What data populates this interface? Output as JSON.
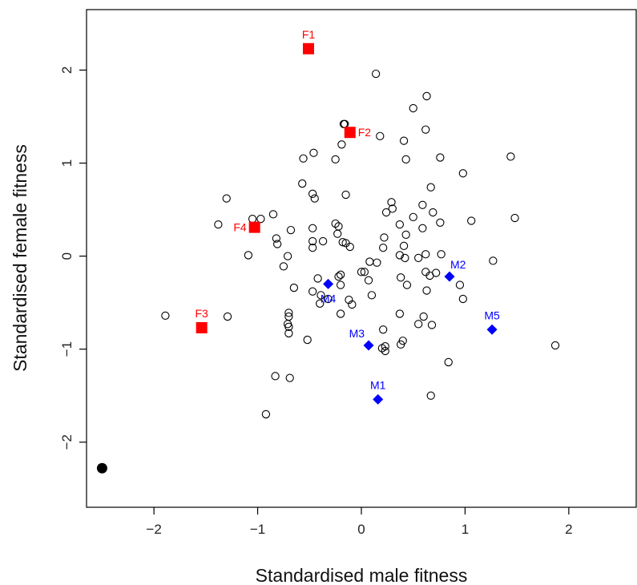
{
  "chart_data": {
    "type": "scatter",
    "xlabel": "Standardised male fitness",
    "ylabel": "Standardised female fitness",
    "xlim": [
      -2.65,
      2.65
    ],
    "ylim": [
      -2.7,
      2.65
    ],
    "xticks": [
      -2,
      -1,
      0,
      1,
      2
    ],
    "yticks": [
      -2,
      -1,
      0,
      1,
      2
    ],
    "grid": false,
    "colors": {
      "female": "#ff0000",
      "male": "#0000ff",
      "points": "#000000"
    },
    "series": [
      {
        "marker": "open-circle",
        "points": [
          [
            0.14,
            1.96
          ],
          [
            0.63,
            1.72
          ],
          [
            0.5,
            1.59
          ],
          [
            -0.17,
            1.42
          ],
          [
            -0.16,
            1.42
          ],
          [
            0.62,
            1.36
          ],
          [
            0.18,
            1.29
          ],
          [
            0.41,
            1.24
          ],
          [
            -0.19,
            1.2
          ],
          [
            -0.46,
            1.11
          ],
          [
            -0.56,
            1.05
          ],
          [
            -0.25,
            1.04
          ],
          [
            0.43,
            1.04
          ],
          [
            0.76,
            1.06
          ],
          [
            1.44,
            1.07
          ],
          [
            0.98,
            0.89
          ],
          [
            -0.57,
            0.78
          ],
          [
            0.67,
            0.74
          ],
          [
            -0.47,
            0.67
          ],
          [
            -0.15,
            0.66
          ],
          [
            -0.45,
            0.62
          ],
          [
            -1.3,
            0.62
          ],
          [
            0.29,
            0.58
          ],
          [
            0.59,
            0.55
          ],
          [
            0.3,
            0.51
          ],
          [
            0.24,
            0.47
          ],
          [
            0.69,
            0.47
          ],
          [
            -0.85,
            0.45
          ],
          [
            0.5,
            0.42
          ],
          [
            -1.05,
            0.4
          ],
          [
            -0.97,
            0.4
          ],
          [
            1.06,
            0.38
          ],
          [
            0.76,
            0.36
          ],
          [
            1.48,
            0.41
          ],
          [
            -0.25,
            0.35
          ],
          [
            -1.38,
            0.34
          ],
          [
            0.37,
            0.34
          ],
          [
            -0.22,
            0.32
          ],
          [
            0.59,
            0.3
          ],
          [
            -0.47,
            0.3
          ],
          [
            -0.68,
            0.28
          ],
          [
            -0.23,
            0.24
          ],
          [
            0.43,
            0.23
          ],
          [
            0.22,
            0.2
          ],
          [
            -0.82,
            0.19
          ],
          [
            -0.47,
            0.16
          ],
          [
            -0.37,
            0.16
          ],
          [
            -0.18,
            0.15
          ],
          [
            -0.15,
            0.14
          ],
          [
            -0.81,
            0.13
          ],
          [
            0.41,
            0.11
          ],
          [
            -0.11,
            0.1
          ],
          [
            -0.47,
            0.09
          ],
          [
            0.21,
            0.09
          ],
          [
            -1.09,
            0.01
          ],
          [
            -0.71,
            0.0
          ],
          [
            0.37,
            0.01
          ],
          [
            0.62,
            0.02
          ],
          [
            0.77,
            0.02
          ],
          [
            0.42,
            -0.02
          ],
          [
            0.55,
            -0.02
          ],
          [
            1.27,
            -0.05
          ],
          [
            0.08,
            -0.06
          ],
          [
            0.15,
            -0.07
          ],
          [
            -0.75,
            -0.11
          ],
          [
            0.62,
            -0.17
          ],
          [
            0.0,
            -0.17
          ],
          [
            0.03,
            -0.17
          ],
          [
            0.72,
            -0.18
          ],
          [
            -0.2,
            -0.2
          ],
          [
            -0.22,
            -0.22
          ],
          [
            0.66,
            -0.21
          ],
          [
            0.38,
            -0.23
          ],
          [
            -0.42,
            -0.24
          ],
          [
            0.07,
            -0.26
          ],
          [
            0.95,
            -0.31
          ],
          [
            0.44,
            -0.31
          ],
          [
            -0.2,
            -0.31
          ],
          [
            -0.65,
            -0.34
          ],
          [
            0.63,
            -0.37
          ],
          [
            -0.47,
            -0.38
          ],
          [
            0.1,
            -0.42
          ],
          [
            -0.39,
            -0.42
          ],
          [
            -0.32,
            -0.46
          ],
          [
            0.98,
            -0.46
          ],
          [
            -0.12,
            -0.47
          ],
          [
            -0.09,
            -0.52
          ],
          [
            -0.4,
            -0.51
          ],
          [
            -0.7,
            -0.61
          ],
          [
            -0.7,
            -0.65
          ],
          [
            0.37,
            -0.62
          ],
          [
            -0.2,
            -0.62
          ],
          [
            -1.89,
            -0.64
          ],
          [
            -1.29,
            -0.65
          ],
          [
            0.6,
            -0.65
          ],
          [
            -0.71,
            -0.73
          ],
          [
            -0.7,
            -0.76
          ],
          [
            0.55,
            -0.73
          ],
          [
            0.68,
            -0.74
          ],
          [
            0.21,
            -0.79
          ],
          [
            -0.7,
            -0.83
          ],
          [
            -0.52,
            -0.9
          ],
          [
            0.4,
            -0.91
          ],
          [
            0.38,
            -0.95
          ],
          [
            1.87,
            -0.96
          ],
          [
            0.2,
            -0.99
          ],
          [
            0.23,
            -0.97
          ],
          [
            0.23,
            -1.02
          ],
          [
            0.84,
            -1.14
          ],
          [
            -0.83,
            -1.29
          ],
          [
            -0.69,
            -1.31
          ],
          [
            0.67,
            -1.5
          ],
          [
            -0.92,
            -1.7
          ]
        ]
      },
      {
        "marker": "filled-circle",
        "points": [
          [
            -2.5,
            -2.28
          ]
        ]
      },
      {
        "marker": "square",
        "color": "#ff0000",
        "points": [
          {
            "label": "F1",
            "x": -0.51,
            "y": 2.23,
            "label_side": "top"
          },
          {
            "label": "F2",
            "x": -0.11,
            "y": 1.33,
            "label_side": "right"
          },
          {
            "label": "F3",
            "x": -1.54,
            "y": -0.77,
            "label_side": "top"
          },
          {
            "label": "F4",
            "x": -1.03,
            "y": 0.31,
            "label_side": "left"
          }
        ]
      },
      {
        "marker": "diamond",
        "color": "#0000ff",
        "points": [
          {
            "label": "M1",
            "x": 0.16,
            "y": -1.54,
            "label_side": "top"
          },
          {
            "label": "M2",
            "x": 0.85,
            "y": -0.22,
            "label_side": "topright"
          },
          {
            "label": "M3",
            "x": 0.07,
            "y": -0.96,
            "label_side": "topleft"
          },
          {
            "label": "M4",
            "x": -0.32,
            "y": -0.3,
            "label_side": "bottom"
          },
          {
            "label": "M5",
            "x": 1.26,
            "y": -0.79,
            "label_side": "top"
          }
        ]
      }
    ]
  }
}
